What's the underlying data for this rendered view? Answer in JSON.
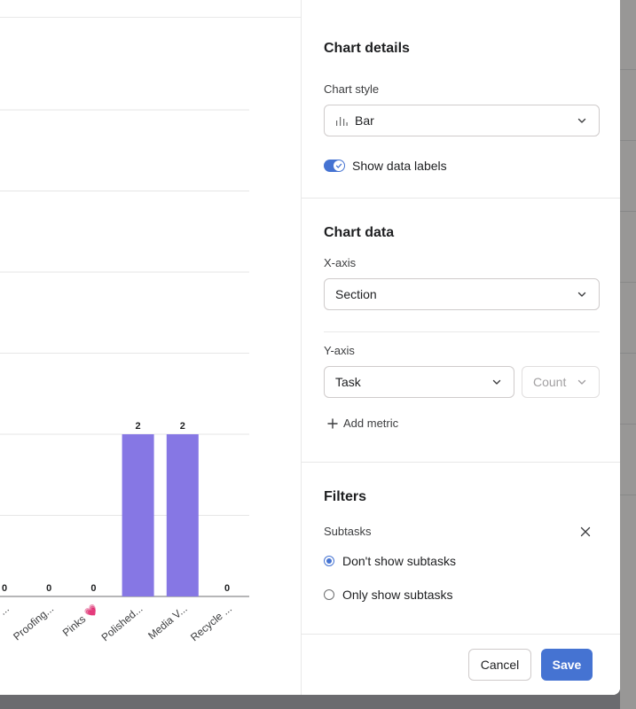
{
  "chart_data": {
    "type": "bar",
    "categories": [
      "...",
      "Proofing...",
      "Pinks 💗",
      "Polished...",
      "Media V...",
      "Recycle ..."
    ],
    "values": [
      0,
      0,
      0,
      2,
      2,
      0
    ],
    "data_labels": [
      "0",
      "0",
      "0",
      "2",
      "2",
      "0"
    ],
    "ylim": [
      0,
      2
    ],
    "grid": true,
    "bar_color": "#8677e4"
  },
  "panel": {
    "chart_details": {
      "title": "Chart details",
      "chart_style_label": "Chart style",
      "chart_style_value": "Bar",
      "chart_style_icon": "bar-chart-icon",
      "show_data_labels": "Show data labels",
      "show_data_labels_on": true
    },
    "chart_data_section": {
      "title": "Chart data",
      "x_axis_label": "X-axis",
      "x_axis_value": "Section",
      "y_axis_label": "Y-axis",
      "y_axis_value": "Task",
      "y_axis_aggregate": "Count",
      "add_metric": "Add metric"
    },
    "filters": {
      "title": "Filters",
      "subtasks_label": "Subtasks",
      "option_dont_show": "Don't show subtasks",
      "option_only_show": "Only show subtasks",
      "selected": "option_dont_show"
    },
    "footer": {
      "cancel": "Cancel",
      "save": "Save"
    }
  },
  "colors": {
    "accent": "#4573d2",
    "bar": "#8677e4",
    "border": "#cfcbcb"
  }
}
